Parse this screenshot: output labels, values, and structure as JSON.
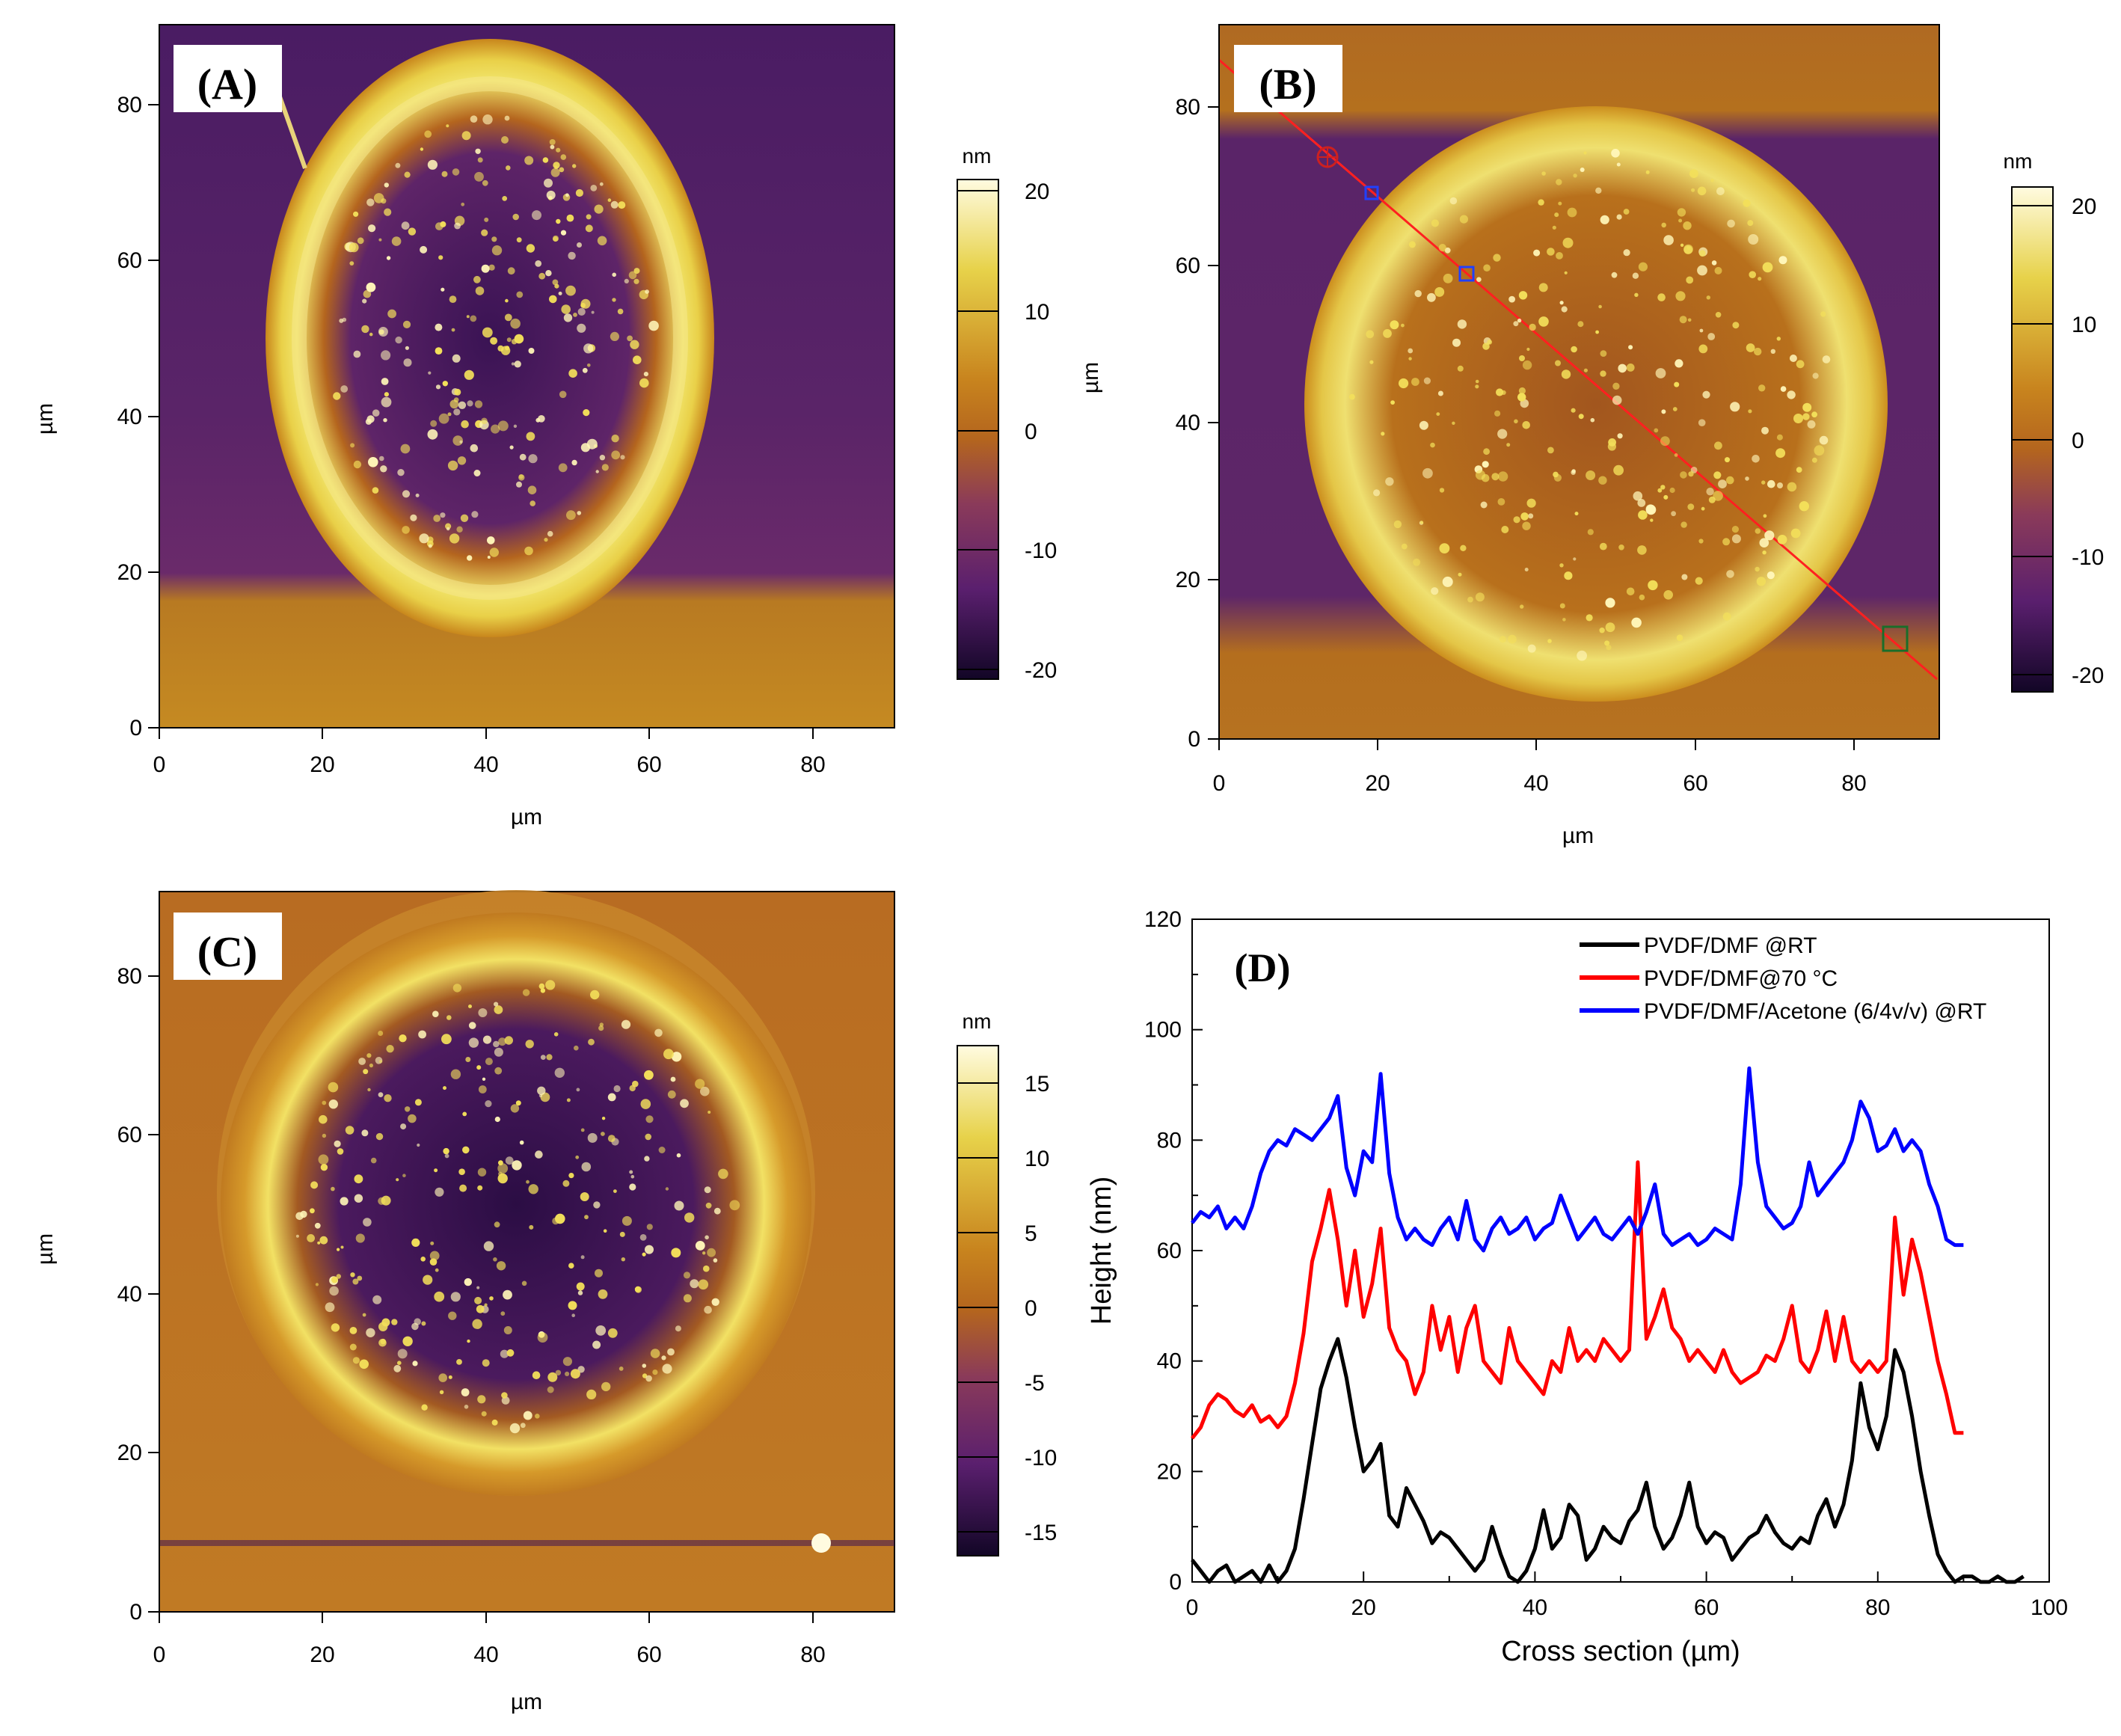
{
  "panels": {
    "A": {
      "label": "(A)",
      "xlabel": "µm",
      "ylabel": "µm",
      "ticks": [
        "0",
        "20",
        "40",
        "60",
        "80"
      ],
      "colorbar": {
        "unit": "nm",
        "ticks": [
          "20",
          "10",
          "0",
          "-10",
          "-20"
        ]
      }
    },
    "B": {
      "label": "(B)",
      "xlabel": "µm",
      "ylabel": "µm",
      "ticks": [
        "0",
        "20",
        "40",
        "60",
        "80"
      ],
      "colorbar": {
        "unit": "nm",
        "ticks": [
          "20",
          "10",
          "0",
          "-10",
          "-20"
        ]
      }
    },
    "C": {
      "label": "(C)",
      "xlabel": "µm",
      "ylabel": "µm",
      "ticks": [
        "0",
        "20",
        "40",
        "60",
        "80"
      ],
      "colorbar": {
        "unit": "nm",
        "ticks": [
          "15",
          "10",
          "5",
          "0",
          "-5",
          "-10",
          "-15"
        ]
      }
    }
  },
  "colors": {
    "afm_dark": "#1b0c3a",
    "afm_purple": "#6a2a6e",
    "afm_mid": "#b4651e",
    "afm_bright": "#e7d24a",
    "afm_white": "#fffbe0",
    "series_rt": "#000000",
    "series_70": "#ff0000",
    "series_acetone": "#0000ff"
  },
  "chart_data": {
    "type": "line",
    "panel_label": "(D)",
    "title": "",
    "xlabel": "Cross section (µm)",
    "ylabel": "Height (nm)",
    "xlim": [
      0,
      100
    ],
    "ylim": [
      0,
      120
    ],
    "xticks": [
      "0",
      "20",
      "40",
      "60",
      "80",
      "100"
    ],
    "yticks": [
      "0",
      "20",
      "40",
      "60",
      "80",
      "100",
      "120"
    ],
    "legend_position": "top-right",
    "series": [
      {
        "name": "PVDF/DMF @RT",
        "color": "#000000",
        "x": [
          0,
          1,
          2,
          3,
          4,
          5,
          6,
          7,
          8,
          9,
          10,
          11,
          12,
          13,
          14,
          15,
          16,
          17,
          18,
          19,
          20,
          21,
          22,
          23,
          24,
          25,
          26,
          27,
          28,
          29,
          30,
          31,
          32,
          33,
          34,
          35,
          36,
          37,
          38,
          39,
          40,
          41,
          42,
          43,
          44,
          45,
          46,
          47,
          48,
          49,
          50,
          51,
          52,
          53,
          54,
          55,
          56,
          57,
          58,
          59,
          60,
          61,
          62,
          63,
          64,
          65,
          66,
          67,
          68,
          69,
          70,
          71,
          72,
          73,
          74,
          75,
          76,
          77,
          78,
          79,
          80,
          81,
          82,
          83,
          84,
          85,
          86,
          87,
          88,
          89,
          90,
          91,
          92,
          93,
          94,
          95,
          96,
          97
        ],
        "values": [
          4,
          2,
          0,
          2,
          3,
          0,
          1,
          2,
          0,
          3,
          0,
          2,
          6,
          15,
          25,
          35,
          40,
          44,
          37,
          28,
          20,
          22,
          25,
          12,
          10,
          17,
          14,
          11,
          7,
          9,
          8,
          6,
          4,
          2,
          4,
          10,
          5,
          1,
          0,
          2,
          6,
          13,
          6,
          8,
          14,
          12,
          4,
          6,
          10,
          8,
          7,
          11,
          13,
          18,
          10,
          6,
          8,
          12,
          18,
          10,
          7,
          9,
          8,
          4,
          6,
          8,
          9,
          12,
          9,
          7,
          6,
          8,
          7,
          12,
          15,
          10,
          14,
          22,
          36,
          28,
          24,
          30,
          42,
          38,
          30,
          20,
          12,
          5,
          2,
          0,
          1,
          1,
          0,
          0,
          1,
          0,
          0,
          1
        ]
      },
      {
        "name": "PVDF/DMF@70 °C",
        "color": "#ff0000",
        "x": [
          0,
          1,
          2,
          3,
          4,
          5,
          6,
          7,
          8,
          9,
          10,
          11,
          12,
          13,
          14,
          15,
          16,
          17,
          18,
          19,
          20,
          21,
          22,
          23,
          24,
          25,
          26,
          27,
          28,
          29,
          30,
          31,
          32,
          33,
          34,
          35,
          36,
          37,
          38,
          39,
          40,
          41,
          42,
          43,
          44,
          45,
          46,
          47,
          48,
          49,
          50,
          51,
          52,
          53,
          54,
          55,
          56,
          57,
          58,
          59,
          60,
          61,
          62,
          63,
          64,
          65,
          66,
          67,
          68,
          69,
          70,
          71,
          72,
          73,
          74,
          75,
          76,
          77,
          78,
          79,
          80,
          81,
          82,
          83,
          84,
          85,
          86,
          87,
          88,
          89,
          90
        ],
        "values": [
          26,
          28,
          32,
          34,
          33,
          31,
          30,
          32,
          29,
          30,
          28,
          30,
          36,
          45,
          58,
          64,
          71,
          62,
          50,
          60,
          48,
          54,
          64,
          46,
          42,
          40,
          34,
          38,
          50,
          42,
          48,
          38,
          46,
          50,
          40,
          38,
          36,
          46,
          40,
          38,
          36,
          34,
          40,
          38,
          46,
          40,
          42,
          40,
          44,
          42,
          40,
          42,
          76,
          44,
          48,
          53,
          46,
          44,
          40,
          42,
          40,
          38,
          42,
          38,
          36,
          37,
          38,
          41,
          40,
          44,
          50,
          40,
          38,
          42,
          49,
          40,
          48,
          40,
          38,
          40,
          38,
          40,
          66,
          52,
          62,
          56,
          48,
          40,
          34,
          27,
          27
        ]
      },
      {
        "name": "PVDF/DMF/Acetone (6/4v/v) @RT",
        "color": "#0000ff",
        "x": [
          0,
          1,
          2,
          3,
          4,
          5,
          6,
          7,
          8,
          9,
          10,
          11,
          12,
          13,
          14,
          15,
          16,
          17,
          18,
          19,
          20,
          21,
          22,
          23,
          24,
          25,
          26,
          27,
          28,
          29,
          30,
          31,
          32,
          33,
          34,
          35,
          36,
          37,
          38,
          39,
          40,
          41,
          42,
          43,
          44,
          45,
          46,
          47,
          48,
          49,
          50,
          51,
          52,
          53,
          54,
          55,
          56,
          57,
          58,
          59,
          60,
          61,
          62,
          63,
          64,
          65,
          66,
          67,
          68,
          69,
          70,
          71,
          72,
          73,
          74,
          75,
          76,
          77,
          78,
          79,
          80,
          81,
          82,
          83,
          84,
          85,
          86,
          87,
          88,
          89,
          90
        ],
        "values": [
          65,
          67,
          66,
          68,
          64,
          66,
          64,
          68,
          74,
          78,
          80,
          79,
          82,
          81,
          80,
          82,
          84,
          88,
          75,
          70,
          78,
          76,
          92,
          74,
          66,
          62,
          64,
          62,
          61,
          64,
          66,
          62,
          69,
          62,
          60,
          64,
          66,
          63,
          64,
          66,
          62,
          64,
          65,
          70,
          66,
          62,
          64,
          66,
          63,
          62,
          64,
          66,
          63,
          67,
          72,
          63,
          61,
          62,
          63,
          61,
          62,
          64,
          63,
          62,
          72,
          93,
          76,
          68,
          66,
          64,
          65,
          68,
          76,
          70,
          72,
          74,
          76,
          80,
          87,
          84,
          78,
          79,
          82,
          78,
          80,
          78,
          72,
          68,
          62,
          61,
          61
        ]
      }
    ]
  }
}
